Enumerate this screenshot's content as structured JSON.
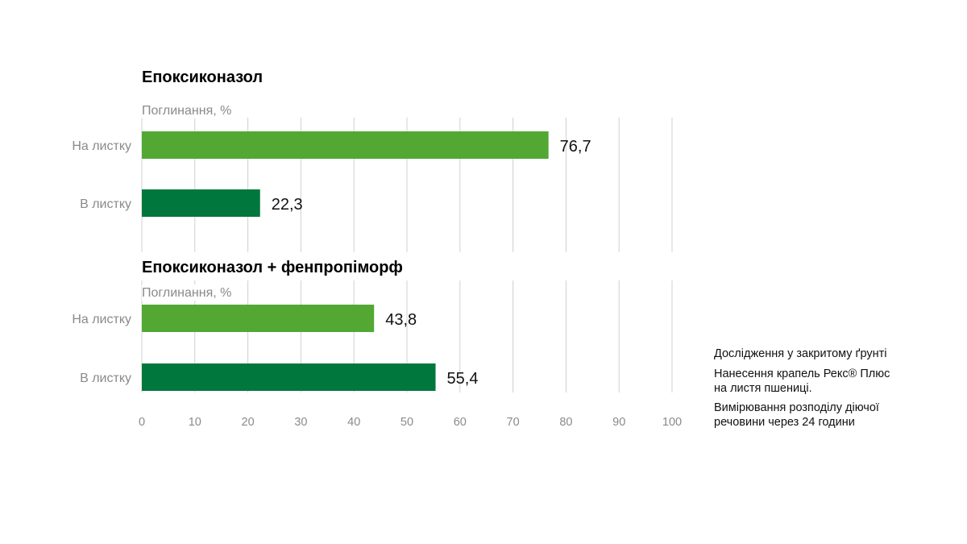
{
  "colors": {
    "on_leaf": "#52a833",
    "in_leaf": "#00773c",
    "grid": "#d0d0d0",
    "axis_text": "#8a8a8a"
  },
  "chart_data": [
    {
      "type": "bar",
      "orientation": "horizontal",
      "title": "Епоксиконазол",
      "xlabel": "Поглинання, %",
      "categories": [
        "На листку",
        "В листку"
      ],
      "values": [
        76.7,
        22.3
      ],
      "value_labels": [
        "76,7",
        "22,3"
      ],
      "xlim": [
        0,
        100
      ],
      "grid": true
    },
    {
      "type": "bar",
      "orientation": "horizontal",
      "title": "Епоксиконазол + фенпропіморф",
      "xlabel": "Поглинання, %",
      "categories": [
        "На листку",
        "В листку"
      ],
      "values": [
        43.8,
        55.4
      ],
      "value_labels": [
        "43,8",
        "55,4"
      ],
      "xlim": [
        0,
        100
      ],
      "xticks": [
        "0",
        "10",
        "20",
        "30",
        "40",
        "50",
        "60",
        "70",
        "80",
        "90",
        "100"
      ],
      "grid": true
    }
  ],
  "notes": [
    "Дослідження у закритому ґрунті",
    "Нанесення крапель Рекс® Плюс",
    "на листя пшениці.",
    "Вимірювання розподілу діючої",
    "речовини через 24 години"
  ]
}
